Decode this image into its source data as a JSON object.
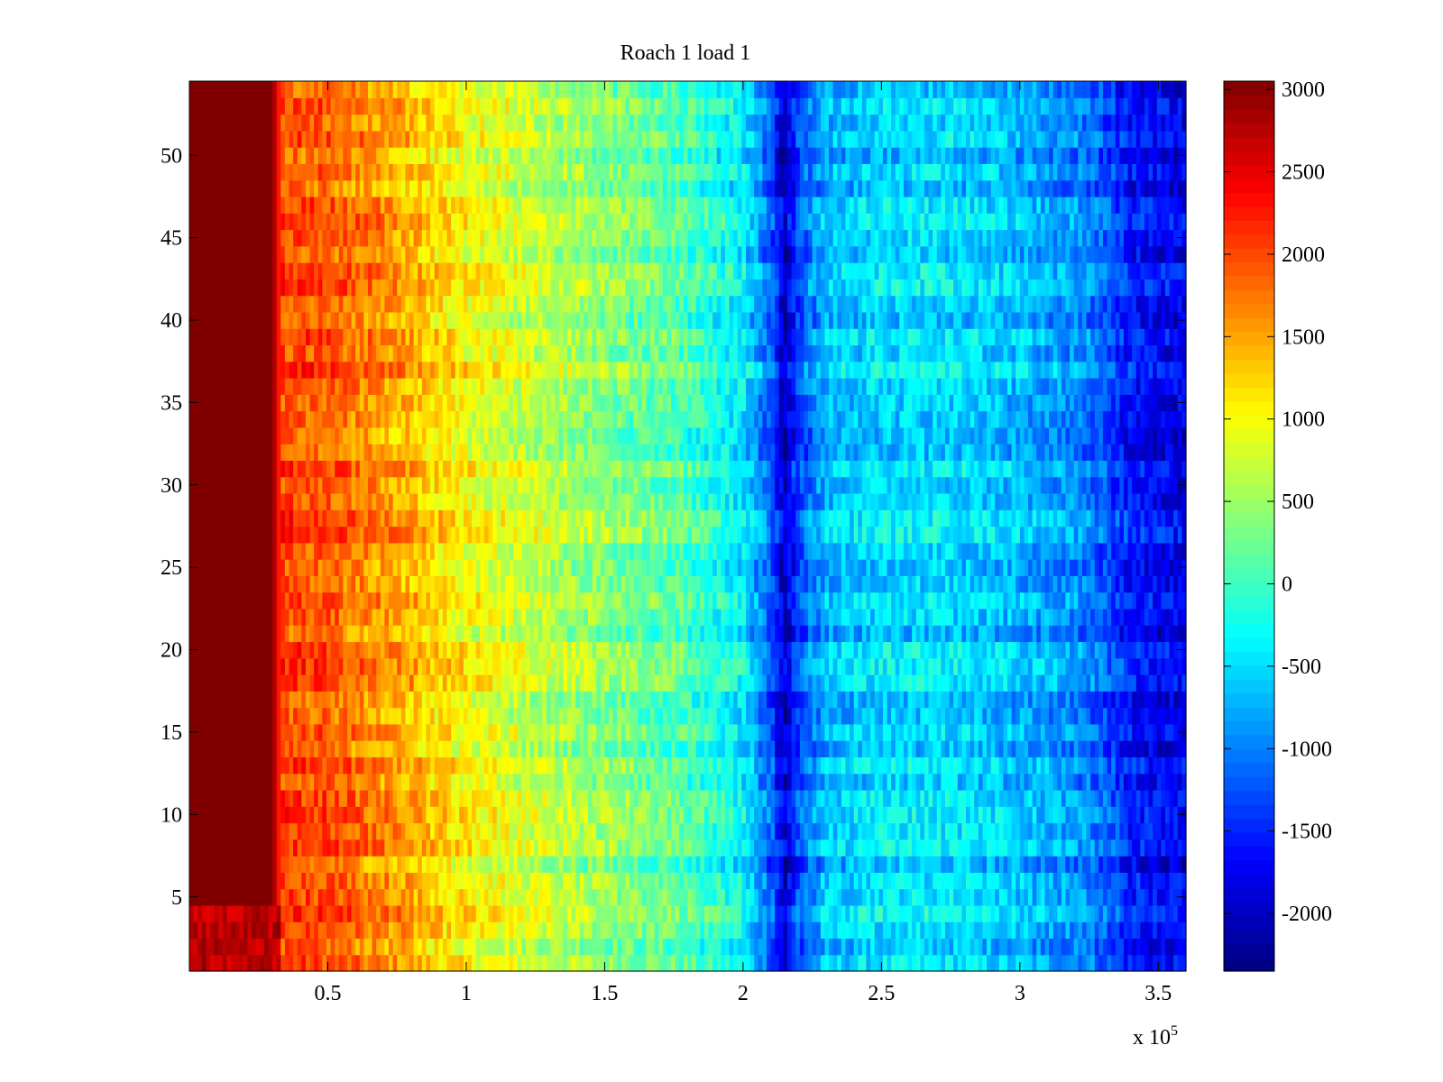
{
  "chart_data": {
    "type": "heatmap",
    "title": "Roach 1 load 1",
    "xlabel": "",
    "ylabel": "",
    "x_exponent_base": "x 10",
    "x_exponent_power": "5",
    "xlim": [
      0,
      3.6
    ],
    "ylim": [
      0.5,
      54.5
    ],
    "x_ticks": [
      0.5,
      1,
      1.5,
      2,
      2.5,
      3,
      3.5
    ],
    "x_tick_labels": [
      "0.5",
      "1",
      "1.5",
      "2",
      "2.5",
      "3",
      "3.5"
    ],
    "y_ticks": [
      5,
      10,
      15,
      20,
      25,
      30,
      35,
      40,
      45,
      50
    ],
    "y_tick_labels": [
      "5",
      "10",
      "15",
      "20",
      "25",
      "30",
      "35",
      "40",
      "45",
      "50"
    ],
    "rows": 54,
    "color_limits": [
      -2350,
      3050
    ],
    "colormap": "jet",
    "colorbar": {
      "ticks": [
        3000,
        2500,
        2000,
        1500,
        1000,
        500,
        0,
        -500,
        -1000,
        -1500,
        -2000
      ],
      "tick_labels": [
        "3000",
        "2500",
        "2000",
        "1500",
        "1000",
        "500",
        "0",
        "-500",
        "-1000",
        "-1500",
        "-2000"
      ]
    },
    "column_profile": {
      "x": [
        0.0,
        0.3,
        0.33,
        0.5,
        0.75,
        1.0,
        1.25,
        1.5,
        1.75,
        2.0,
        2.1,
        2.15,
        2.2,
        2.3,
        2.5,
        2.75,
        3.0,
        3.25,
        3.4,
        3.6
      ],
      "value": [
        3050,
        3050,
        2000,
        1900,
        1500,
        1000,
        700,
        400,
        150,
        -400,
        -1200,
        -2000,
        -1300,
        -700,
        -500,
        -500,
        -700,
        -1000,
        -1600,
        -1800
      ]
    },
    "row_offsets_note": ""
  }
}
